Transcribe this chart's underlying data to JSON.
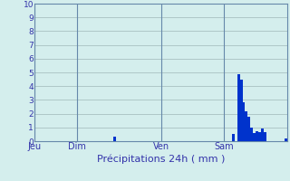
{
  "title": "Précipitations 24h ( mm )",
  "ylim": [
    0,
    10
  ],
  "yticks": [
    0,
    1,
    2,
    3,
    4,
    5,
    6,
    7,
    8,
    9,
    10
  ],
  "background_color": "#d4eeed",
  "bar_color": "#0033cc",
  "grid_color": "#a0b8b8",
  "vline_color": "#6688aa",
  "text_color": "#3333aa",
  "day_labels": [
    "Jeu",
    "Dim",
    "Ven",
    "Sam"
  ],
  "day_positions": [
    0,
    16,
    48,
    72
  ],
  "num_bars": 96,
  "bars": [
    0,
    0,
    0,
    0,
    0,
    0,
    0,
    0,
    0,
    0,
    0,
    0,
    0,
    0,
    0,
    0,
    0,
    0,
    0,
    0,
    0,
    0,
    0,
    0,
    0,
    0,
    0,
    0,
    0,
    0,
    0.3,
    0,
    0,
    0,
    0,
    0,
    0,
    0,
    0,
    0,
    0,
    0,
    0,
    0,
    0,
    0,
    0,
    0,
    0,
    0,
    0,
    0,
    0,
    0,
    0,
    0,
    0,
    0,
    0,
    0,
    0,
    0,
    0,
    0,
    0,
    0,
    0,
    0,
    0,
    0,
    0,
    0,
    0,
    0,
    0,
    0.5,
    0,
    4.9,
    4.5,
    2.8,
    2.2,
    1.8,
    1.0,
    0.6,
    0.7,
    0.65,
    0.9,
    0.65,
    0,
    0,
    0,
    0,
    0,
    0,
    0,
    0.2
  ]
}
